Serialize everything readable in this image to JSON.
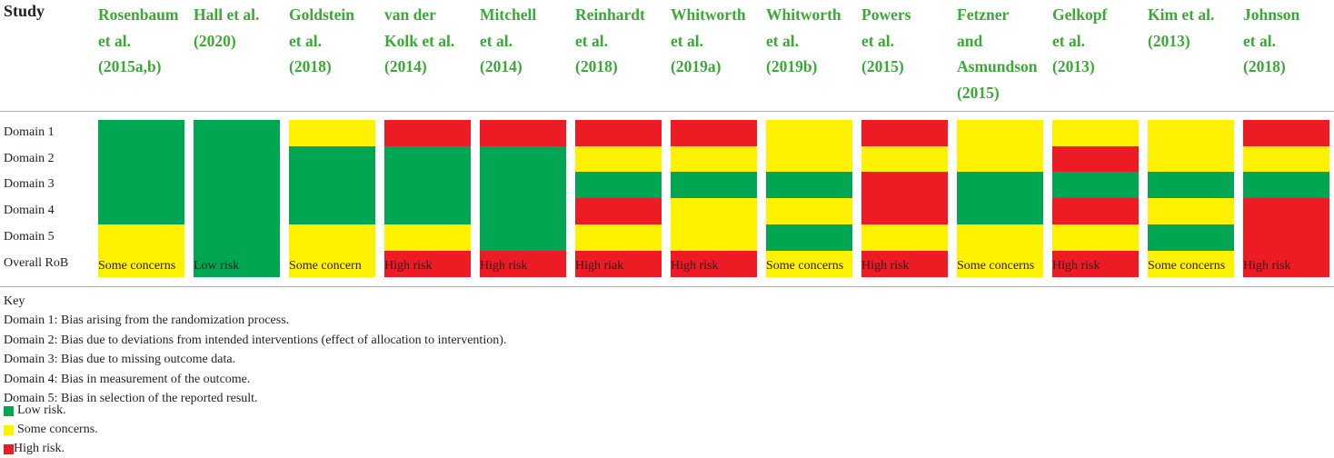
{
  "header": {
    "study_label": "Study"
  },
  "row_labels": [
    "Domain 1",
    "Domain 2",
    "Domain 3",
    "Domain 4",
    "Domain 5",
    "Overall RoB"
  ],
  "colors": {
    "low": "#00a651",
    "some": "#fff200",
    "high": "#ed1c24",
    "study_text": "#3aa935"
  },
  "studies": [
    {
      "name_lines": [
        "Rosenbaum",
        "et al.",
        "(2015a,b)"
      ],
      "ratings": [
        "low",
        "low",
        "low",
        "low",
        "some",
        "some"
      ],
      "overall_text": "Some concerns"
    },
    {
      "name_lines": [
        "Hall et al.",
        "(2020)"
      ],
      "ratings": [
        "low",
        "low",
        "low",
        "low",
        "low",
        "low"
      ],
      "overall_text": "Low risk"
    },
    {
      "name_lines": [
        "Goldstein",
        "et al.",
        "(2018)"
      ],
      "ratings": [
        "some",
        "low",
        "low",
        "low",
        "some",
        "some"
      ],
      "overall_text": "Some concern"
    },
    {
      "name_lines": [
        "van der",
        "Kolk et al.",
        "(2014)"
      ],
      "ratings": [
        "high",
        "low",
        "low",
        "low",
        "some",
        "high"
      ],
      "overall_text": "High risk"
    },
    {
      "name_lines": [
        "Mitchell",
        "et al.",
        "(2014)"
      ],
      "ratings": [
        "high",
        "low",
        "low",
        "low",
        "low",
        "high"
      ],
      "overall_text": "High risk"
    },
    {
      "name_lines": [
        "Reinhardt",
        "et al.",
        "(2018)"
      ],
      "ratings": [
        "high",
        "some",
        "low",
        "high",
        "some",
        "high"
      ],
      "overall_text": "High riak"
    },
    {
      "name_lines": [
        "Whitworth",
        "et al.",
        "(2019a)"
      ],
      "ratings": [
        "high",
        "some",
        "low",
        "some",
        "some",
        "high"
      ],
      "overall_text": "High risk"
    },
    {
      "name_lines": [
        "Whitworth",
        "et al.",
        "(2019b)"
      ],
      "ratings": [
        "some",
        "some",
        "low",
        "some",
        "low",
        "some"
      ],
      "overall_text": "Some concerns"
    },
    {
      "name_lines": [
        "Powers",
        "et al.",
        "(2015)"
      ],
      "ratings": [
        "high",
        "some",
        "high",
        "high",
        "some",
        "high"
      ],
      "overall_text": "High risk"
    },
    {
      "name_lines": [
        "Fetzner",
        "and",
        "Asmundson",
        "(2015)"
      ],
      "ratings": [
        "some",
        "some",
        "low",
        "low",
        "some",
        "some"
      ],
      "overall_text": "Some concerns"
    },
    {
      "name_lines": [
        "Gelkopf",
        "et al.",
        "(2013)"
      ],
      "ratings": [
        "some",
        "high",
        "low",
        "high",
        "some",
        "high"
      ],
      "overall_text": "High risk"
    },
    {
      "name_lines": [
        "Kim et al.",
        "(2013)"
      ],
      "ratings": [
        "some",
        "some",
        "low",
        "some",
        "low",
        "some"
      ],
      "overall_text": "Some concerns"
    },
    {
      "name_lines": [
        "Johnson",
        "et al.",
        "(2018)"
      ],
      "ratings": [
        "high",
        "some",
        "low",
        "high",
        "high",
        "high"
      ],
      "overall_text": "High risk"
    }
  ],
  "key": {
    "title": "Key",
    "lines": [
      "Domain 1: Bias arising from the randomization process.",
      "Domain 2: Bias due to deviations from intended interventions (effect of allocation to intervention).",
      "Domain 3: Bias due to missing outcome data.",
      "Domain 4: Bias in measurement of the outcome.",
      "Domain 5: Bias in selection of the reported result."
    ],
    "legend": [
      {
        "level": "low",
        "label": "Low risk."
      },
      {
        "level": "some",
        "label": "Some concerns."
      },
      {
        "level": "high",
        "label": "High risk."
      }
    ]
  }
}
